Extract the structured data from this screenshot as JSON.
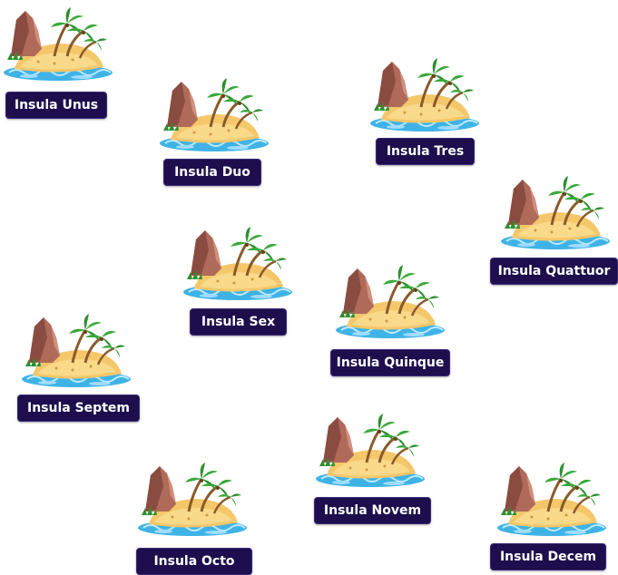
{
  "islands": [
    {
      "label": "Insula Unus"
    },
    {
      "label": "Insula Duo"
    },
    {
      "label": "Insula Tres"
    },
    {
      "label": "Insula Quattuor"
    },
    {
      "label": "Insula Sex"
    },
    {
      "label": "Insula Quinque"
    },
    {
      "label": "Insula Septem"
    },
    {
      "label": "Insula Novem"
    },
    {
      "label": "Insula Octo"
    },
    {
      "label": "Insula Decem"
    }
  ],
  "colors": {
    "label_background": "#1e0e4d",
    "label_text": "#ffffff",
    "sand": "#f4c76b",
    "water": "#3fb3e6",
    "rock": "#b06a5a",
    "palm_leaf": "#3aa83a"
  },
  "icons": {
    "island": "island-icon",
    "palm": "palm-tree-icon",
    "rock": "rock-icon",
    "water": "water-icon"
  }
}
